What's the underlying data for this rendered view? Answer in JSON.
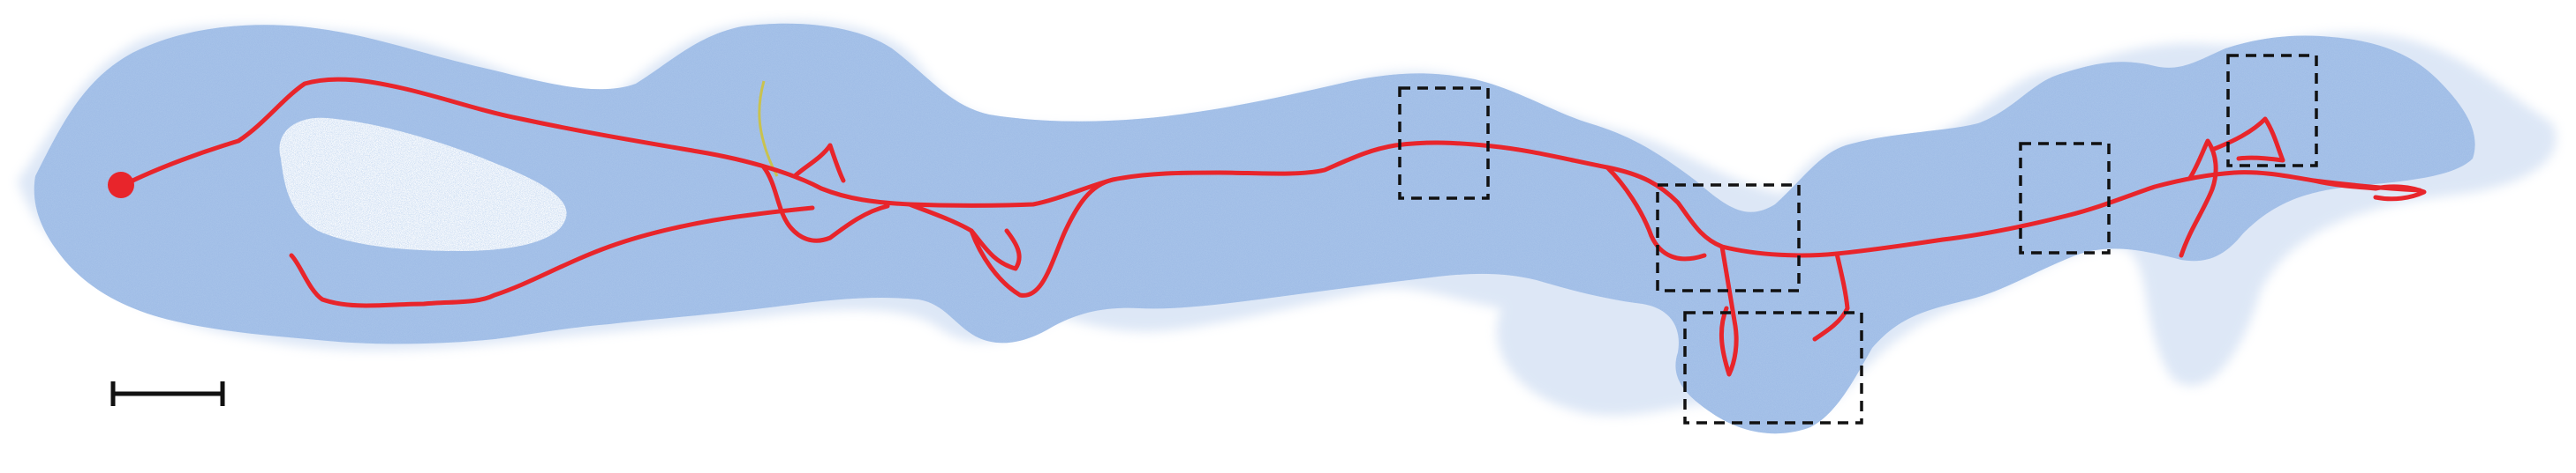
{
  "figure": {
    "tissue_color": "#9fbce6",
    "tissue_speckle_color": "#6f95cf",
    "trace_color": "#e8252b",
    "start_marker_color": "#e8252b",
    "secondary_trace_color": "#c9c24f",
    "roi_box_style": "dashed",
    "roi_box_count": 6,
    "scale_bar_color": "#111111"
  }
}
